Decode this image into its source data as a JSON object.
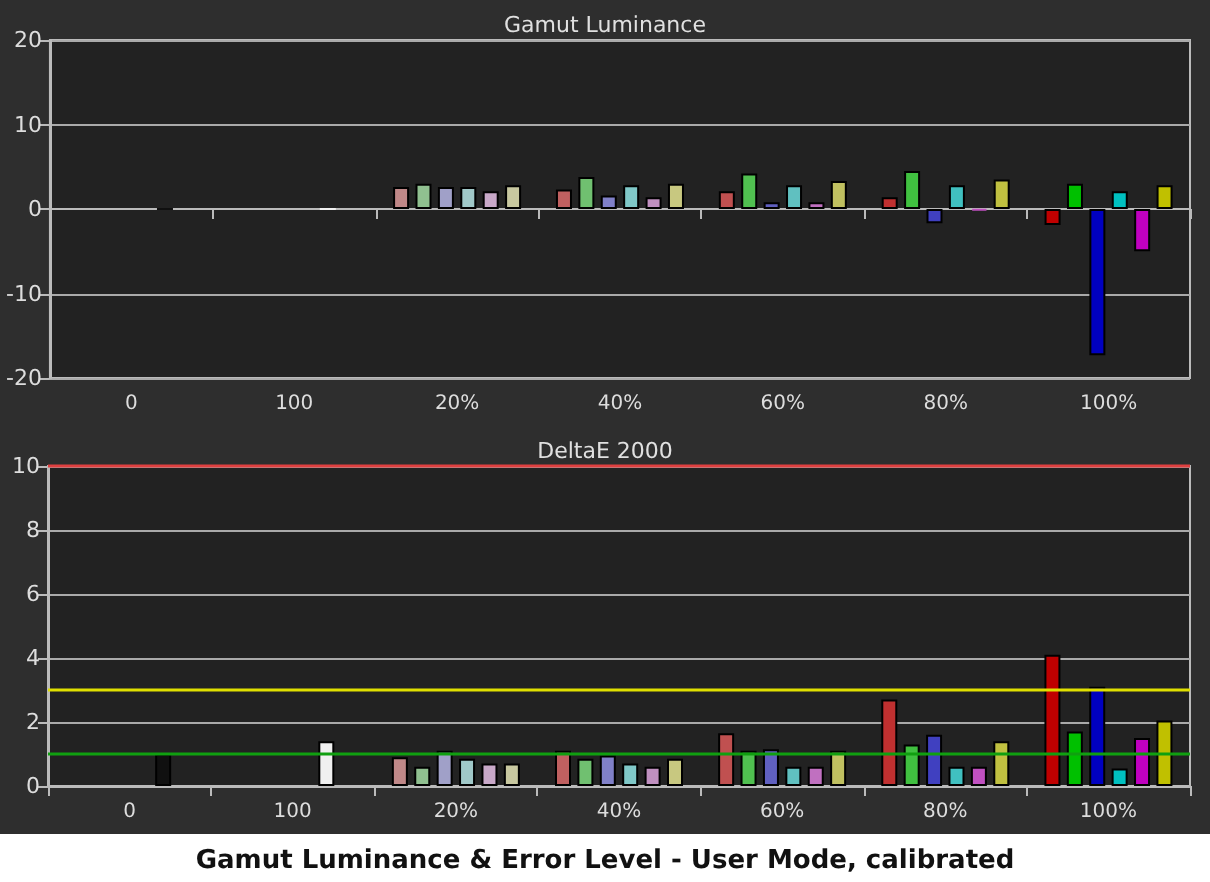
{
  "chart_data": [
    {
      "type": "bar",
      "title": "Gamut Luminance",
      "categories": [
        "0",
        "100",
        "20%",
        "40%",
        "60%",
        "80%",
        "100%"
      ],
      "ylim": [
        -20,
        20
      ],
      "yticks": [
        -20,
        -10,
        0,
        10,
        20
      ],
      "grid": "y",
      "series": [
        {
          "values": [
            null,
            null,
            2.6,
            2.3,
            2.1,
            1.4,
            -1.9
          ],
          "colors": [
            null,
            null,
            "#c08888",
            "#c06060",
            "#c05050",
            "#c03030",
            "#c00000"
          ]
        },
        {
          "values": [
            null,
            null,
            3.0,
            3.8,
            4.2,
            4.5,
            3.0
          ],
          "colors": [
            null,
            null,
            "#90c090",
            "#70c070",
            "#50c050",
            "#40c040",
            "#00c000"
          ]
        },
        {
          "values": [
            null,
            null,
            2.6,
            1.6,
            0.8,
            -1.7,
            -17.3
          ],
          "colors": [
            null,
            null,
            "#a0a0c8",
            "#8080c8",
            "#6060c0",
            "#4040c0",
            "#0000c0"
          ]
        },
        {
          "values": [
            null,
            null,
            2.6,
            2.8,
            2.8,
            2.8,
            2.1
          ],
          "colors": [
            null,
            null,
            "#a0c8c8",
            "#80c8c8",
            "#60c0c0",
            "#40c0c0",
            "#00c0c0"
          ]
        },
        {
          "values": [
            0,
            0,
            2.1,
            1.4,
            0.8,
            -0.2,
            -5.0
          ],
          "colors": [
            "#101010",
            "#f0f0f0",
            "#c8a8c8",
            "#c090c0",
            "#c070c0",
            "#c050c0",
            "#c000c0"
          ]
        },
        {
          "values": [
            null,
            null,
            2.8,
            3.0,
            3.3,
            3.5,
            2.8
          ],
          "colors": [
            null,
            null,
            "#c8c8a0",
            "#c8c880",
            "#c0c060",
            "#c0c040",
            "#c0c000"
          ]
        }
      ]
    },
    {
      "type": "bar",
      "title": "DeltaE 2000",
      "categories": [
        "0",
        "100",
        "20%",
        "40%",
        "60%",
        "80%",
        "100%"
      ],
      "ylim": [
        0,
        10
      ],
      "yticks": [
        0,
        2,
        4,
        6,
        8,
        10
      ],
      "grid": "y",
      "annotations": [
        "Gamut Luminance & Error Level - User Mode, calibrated"
      ],
      "ref_lines": [
        {
          "axis": "y",
          "value": 10,
          "color": "#e04040"
        },
        {
          "axis": "y",
          "value": 3,
          "color": "#e0e000"
        },
        {
          "axis": "y",
          "value": 1,
          "color": "#10a010"
        }
      ],
      "series": [
        {
          "values": [
            null,
            null,
            0.9,
            1.1,
            1.65,
            2.7,
            4.1
          ],
          "colors": [
            null,
            null,
            "#c08888",
            "#c06060",
            "#c05050",
            "#c03030",
            "#c00000"
          ]
        },
        {
          "values": [
            null,
            null,
            0.6,
            0.85,
            1.1,
            1.3,
            1.7
          ],
          "colors": [
            null,
            null,
            "#90c090",
            "#70c070",
            "#50c050",
            "#40c040",
            "#00c000"
          ]
        },
        {
          "values": [
            null,
            null,
            1.1,
            0.95,
            1.15,
            1.6,
            3.1
          ],
          "colors": [
            null,
            null,
            "#a0a0c8",
            "#8080c8",
            "#6060c0",
            "#4040c0",
            "#0000c0"
          ]
        },
        {
          "values": [
            null,
            null,
            0.85,
            0.7,
            0.6,
            0.6,
            0.55
          ],
          "colors": [
            null,
            null,
            "#a0c8c8",
            "#80c8c8",
            "#60c0c0",
            "#40c0c0",
            "#00c0c0"
          ]
        },
        {
          "values": [
            1.0,
            1.4,
            0.7,
            0.6,
            0.6,
            0.6,
            1.5
          ],
          "colors": [
            "#101010",
            "#f0f0f0",
            "#c8a8c8",
            "#c090c0",
            "#c070c0",
            "#c050c0",
            "#c000c0"
          ]
        },
        {
          "values": [
            null,
            null,
            0.7,
            0.85,
            1.1,
            1.4,
            2.05
          ],
          "colors": [
            null,
            null,
            "#c8c8a0",
            "#c8c880",
            "#c0c060",
            "#c0c040",
            "#c0c000"
          ]
        }
      ]
    }
  ]
}
